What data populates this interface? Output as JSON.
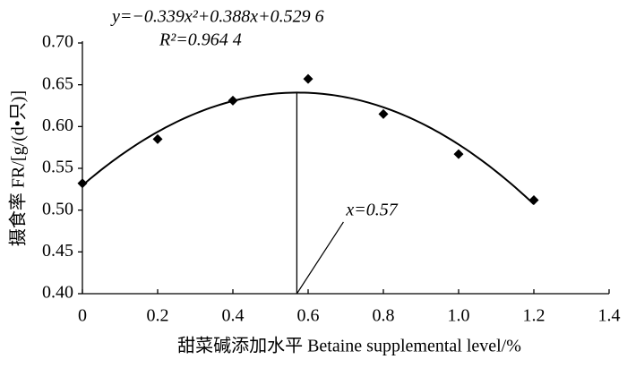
{
  "chart_data": {
    "type": "scatter",
    "x_label": "甜菜碱添加水平  Betaine supplemental level/%",
    "y_label": "摄食率  FR/[g/(d•只)]",
    "x": [
      0,
      0.2,
      0.4,
      0.6,
      0.8,
      1.0,
      1.2
    ],
    "values": [
      0.532,
      0.585,
      0.631,
      0.657,
      0.615,
      0.567,
      0.512
    ],
    "color": "#000000",
    "xlim": [
      0,
      1.4
    ],
    "xticks": [
      0,
      0.2,
      0.4,
      0.6,
      0.8,
      {
        "value": 1,
        "label": "1.0"
      },
      1.2,
      1.4
    ],
    "ylim": [
      0.4,
      0.7
    ],
    "yticks": [
      {
        "value": 0.4,
        "label": "0.40"
      },
      0.45,
      {
        "value": 0.5,
        "label": "0.50"
      },
      0.55,
      {
        "value": 0.6,
        "label": "0.60"
      },
      0.65,
      {
        "value": 0.7,
        "label": "0.70"
      }
    ],
    "trendline": {
      "equation": "y=−0.339x²+0.388x+0.529 6",
      "r_squared": "R²=0.964 4",
      "coefficients": [
        -0.339,
        0.388,
        0.5296
      ]
    },
    "annotation": {
      "value": 0.57,
      "label": "x=0.57"
    }
  }
}
